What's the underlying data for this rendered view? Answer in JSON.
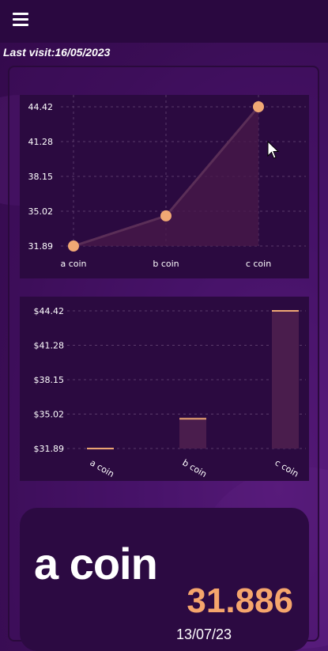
{
  "header": {
    "menu_icon": "hamburger-menu-icon"
  },
  "last_visit": "Last visit:16/05/2023",
  "chart_data": [
    {
      "type": "line",
      "categories": [
        "a coin",
        "b coin",
        "c coin"
      ],
      "values": [
        31.886,
        34.6,
        44.42
      ],
      "ytick_labels": [
        "31.89",
        "35.02",
        "38.15",
        "41.28",
        "44.42"
      ],
      "ylim": [
        31.89,
        44.42
      ],
      "grid": true,
      "fill_area": true,
      "line_color": "#5a2e57",
      "marker_color": "#f0a874",
      "area_color": "#4a1a4a"
    },
    {
      "type": "bar",
      "categories": [
        "a coin",
        "b coin",
        "c coin"
      ],
      "values": [
        31.886,
        34.6,
        44.42
      ],
      "ytick_labels": [
        "$31.89",
        "$35.02",
        "$38.15",
        "$41.28",
        "$44.42"
      ],
      "ylim": [
        31.89,
        44.42
      ],
      "grid": true,
      "bar_color": "#4a1d4d",
      "bar_top_color": "#f0a874"
    }
  ],
  "coin_card": {
    "name": "a coin",
    "value": "31.886",
    "date": "13/07/23",
    "value_color": "#f5a56c"
  }
}
